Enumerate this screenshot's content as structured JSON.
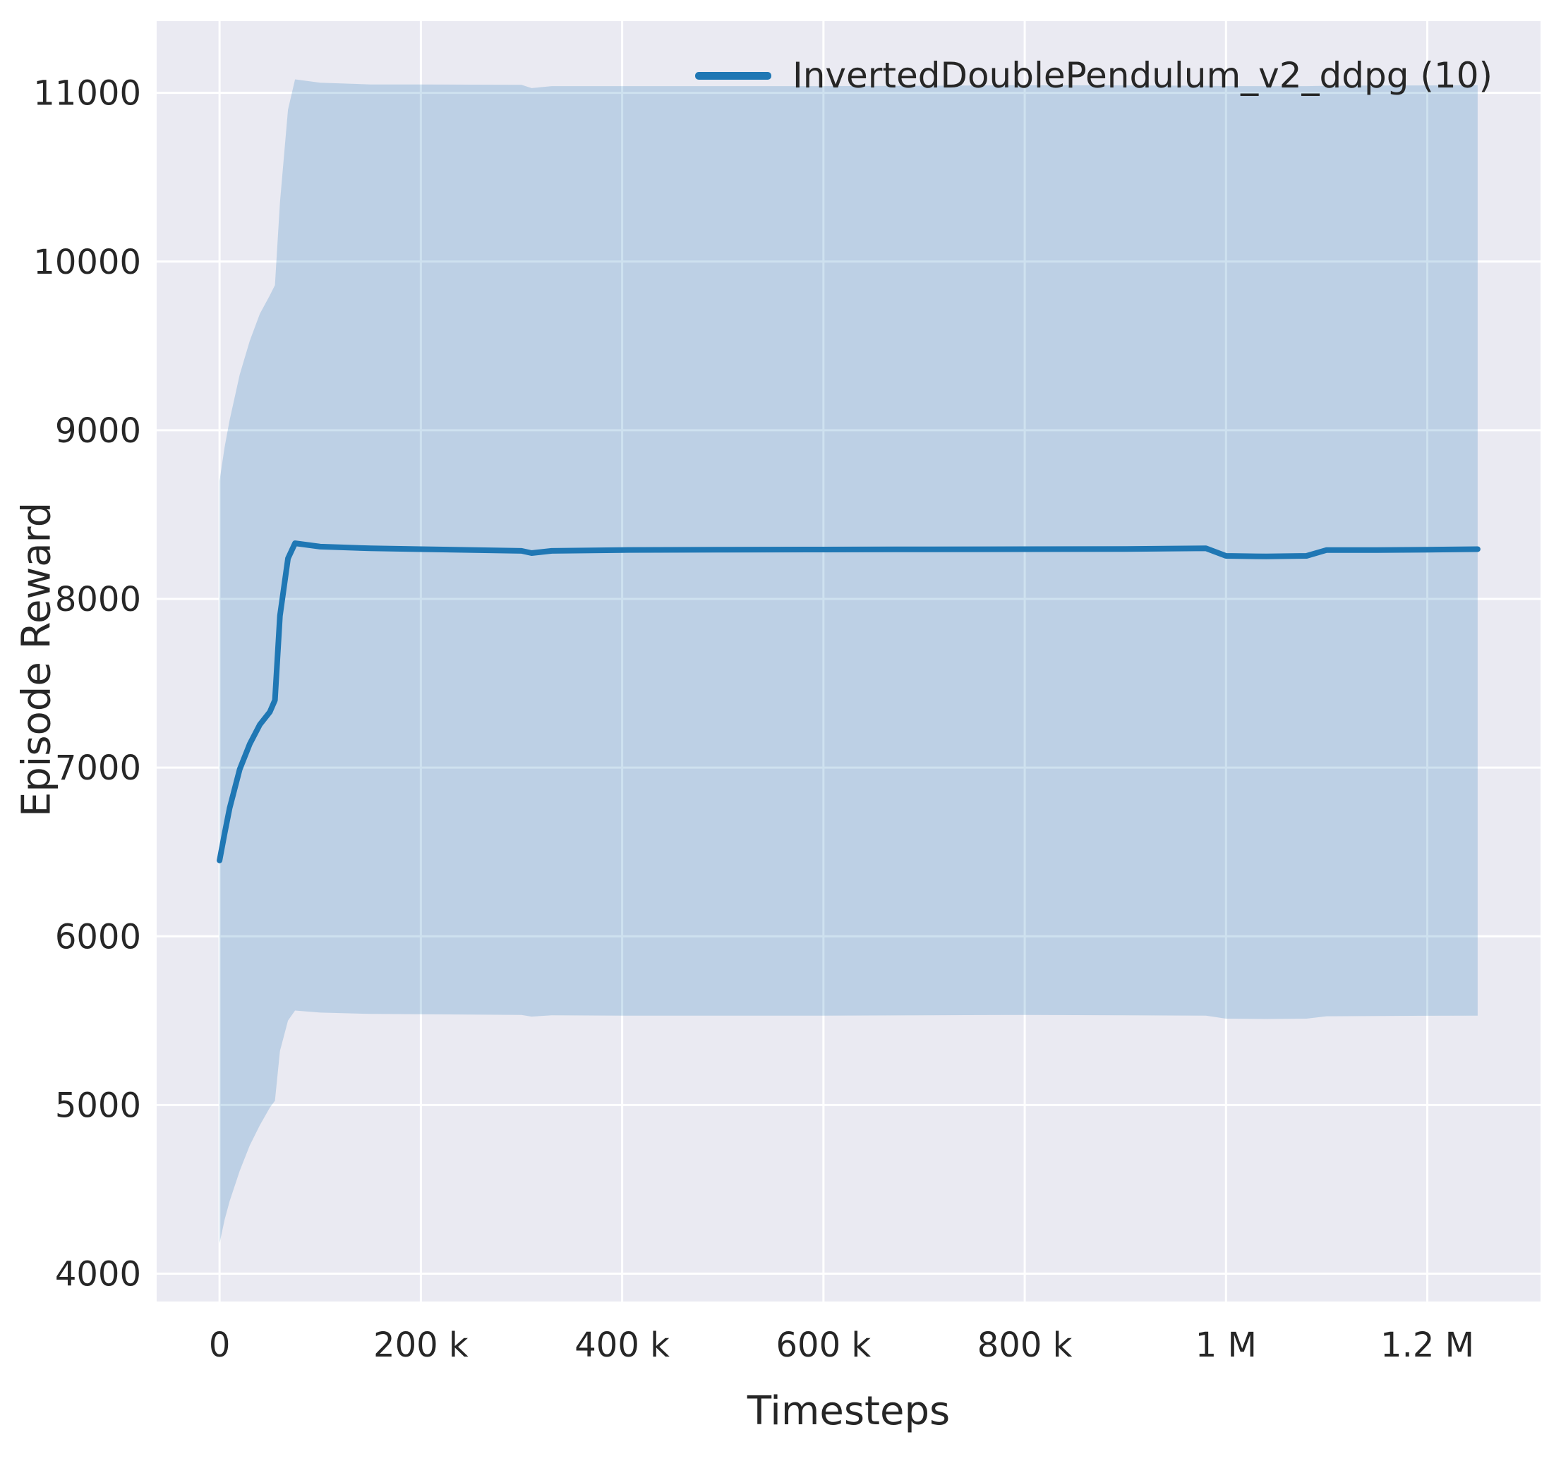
{
  "chart_data": {
    "type": "line",
    "title": "",
    "xlabel": "Timesteps",
    "ylabel": "Episode Reward",
    "grid": true,
    "grid_color": "#ffffff",
    "plot_background": "#eaeaf2",
    "text_color": "#262626",
    "legend_position": "upper center-right",
    "xlim": [
      -62500,
      1312500
    ],
    "ylim": [
      3835,
      11425
    ],
    "xticks": {
      "values": [
        0,
        200000,
        400000,
        600000,
        800000,
        1000000,
        1200000
      ],
      "labels": [
        "0",
        "200 k",
        "400 k",
        "600 k",
        "800 k",
        "1 M",
        "1.2 M"
      ]
    },
    "yticks": {
      "values": [
        4000,
        5000,
        6000,
        7000,
        8000,
        9000,
        10000,
        11000
      ],
      "labels": [
        "4000",
        "5000",
        "6000",
        "7000",
        "8000",
        "9000",
        "10000",
        "11000"
      ]
    },
    "series": [
      {
        "name": "InvertedDoublePendulum_v2_ddpg (10)",
        "color": "#1f77b4",
        "band_alpha": 0.22,
        "x": [
          0,
          5000,
          10000,
          20000,
          30000,
          40000,
          50000,
          55000,
          60000,
          68000,
          75000,
          100000,
          150000,
          200000,
          300000,
          310000,
          330000,
          400000,
          500000,
          600000,
          700000,
          800000,
          900000,
          980000,
          1000000,
          1040000,
          1080000,
          1100000,
          1150000,
          1200000,
          1250000
        ],
        "mean": [
          6450,
          6610,
          6760,
          6990,
          7140,
          7255,
          7330,
          7400,
          7900,
          8240,
          8330,
          8310,
          8300,
          8295,
          8285,
          8272,
          8285,
          8290,
          8292,
          8293,
          8294,
          8295,
          8296,
          8300,
          8255,
          8252,
          8255,
          8290,
          8290,
          8292,
          8295
        ],
        "upper": [
          8700,
          8900,
          9060,
          9330,
          9530,
          9690,
          9800,
          9860,
          10350,
          10900,
          11080,
          11060,
          11050,
          11050,
          11048,
          11028,
          11040,
          11040,
          11040,
          11040,
          11042,
          11045,
          11044,
          11042,
          11040,
          11040,
          11040,
          11042,
          11043,
          11044,
          11045
        ],
        "lower": [
          4180,
          4320,
          4430,
          4610,
          4760,
          4880,
          4985,
          5025,
          5320,
          5500,
          5560,
          5548,
          5540,
          5538,
          5534,
          5524,
          5532,
          5530,
          5530,
          5530,
          5532,
          5534,
          5532,
          5530,
          5512,
          5510,
          5512,
          5526,
          5528,
          5529,
          5530
        ]
      }
    ]
  }
}
